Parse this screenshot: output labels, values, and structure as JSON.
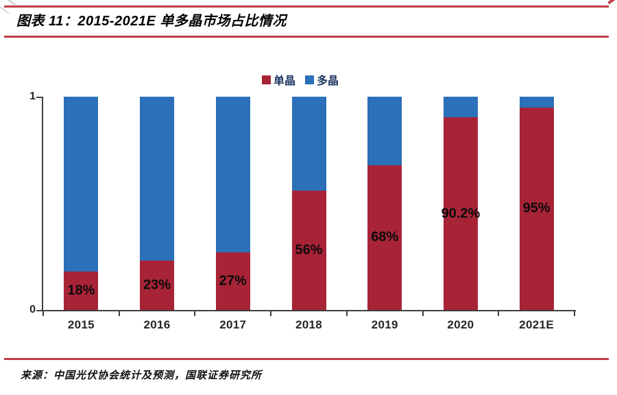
{
  "header": {
    "title": "图表 11：2015-2021E 单多晶市场占比情况"
  },
  "legend": {
    "items": [
      {
        "label": "单晶",
        "color": "#a82336"
      },
      {
        "label": "多晶",
        "color": "#2b70b8"
      }
    ]
  },
  "chart_data": {
    "type": "bar",
    "stacked": true,
    "title": "2015-2021E 单多晶市场占比情况",
    "categories": [
      "2015",
      "2016",
      "2017",
      "2018",
      "2019",
      "2020",
      "2021E"
    ],
    "series": [
      {
        "name": "单晶",
        "color": "#a82336",
        "values": [
          0.18,
          0.23,
          0.27,
          0.56,
          0.68,
          0.902,
          0.95
        ]
      },
      {
        "name": "多晶",
        "color": "#2b70b8",
        "values": [
          0.82,
          0.77,
          0.73,
          0.44,
          0.32,
          0.098,
          0.05
        ]
      }
    ],
    "data_labels": [
      "18%",
      "23%",
      "27%",
      "56%",
      "68%",
      "90.2%",
      "95%"
    ],
    "ylim": [
      0,
      1
    ],
    "yticks": [
      {
        "label": "1",
        "value": 1
      },
      {
        "label": "0",
        "value": 0
      }
    ],
    "grid": false,
    "legend_position": "top-center"
  },
  "footer": {
    "source": "来源：中国光伏协会统计及预测，国联证券研究所"
  },
  "colors": {
    "mono_red": "#a82336",
    "multi_blue": "#2b70b8",
    "rule_red": "#c23b4b",
    "axis": "#3f3f3f"
  }
}
